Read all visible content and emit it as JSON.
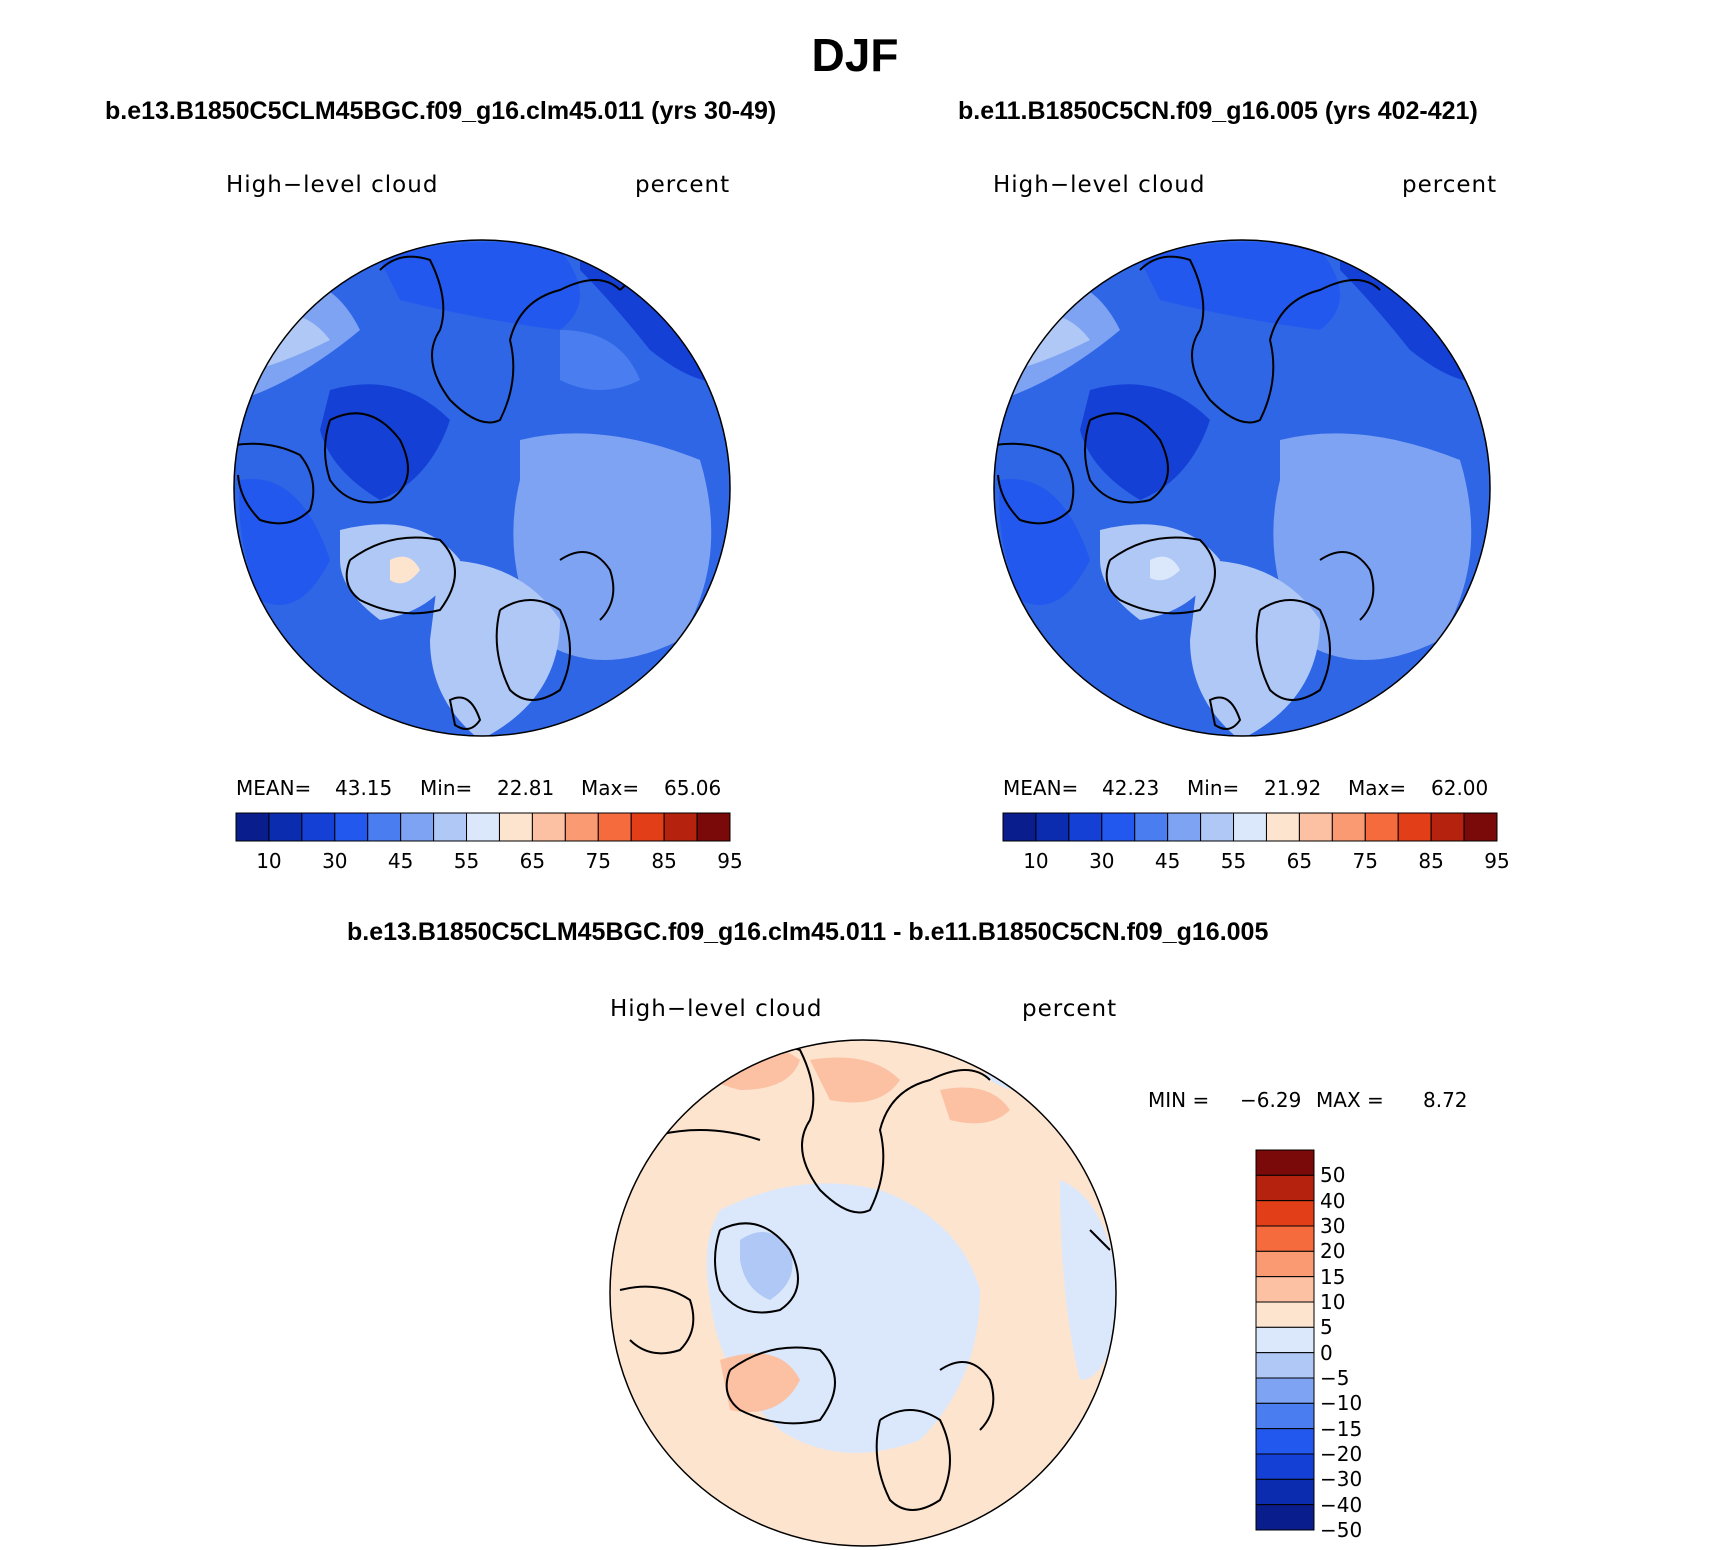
{
  "page_title": "DJF",
  "panels": [
    {
      "case": "b.e13.B1850C5CLM45BGC.f09_g16.clm45.011 (yrs 30-49)",
      "variable": "High−level cloud",
      "units": "percent",
      "stats": {
        "mean_label": "MEAN=",
        "mean": "43.15",
        "min_label": "Min=",
        "min": "22.81",
        "max_label": "Max=",
        "max": "65.06"
      }
    },
    {
      "case": "b.e11.B1850C5CN.f09_g16.005 (yrs 402-421)",
      "variable": "High−level cloud",
      "units": "percent",
      "stats": {
        "mean_label": "MEAN=",
        "mean": "42.23",
        "min_label": "Min=",
        "min": "21.92",
        "max_label": "Max=",
        "max": "62.00"
      }
    }
  ],
  "diff_panel": {
    "title": "b.e13.B1850C5CLM45BGC.f09_g16.clm45.011 - b.e11.B1850C5CN.f09_g16.005",
    "variable": "High−level cloud",
    "units": "percent",
    "minmax": {
      "min_label": "MIN =",
      "min": "−6.29",
      "max_label": "MAX =",
      "max": "8.72"
    }
  },
  "colorbar_main": {
    "colors": [
      "#0a1d8c",
      "#0c2cb0",
      "#1440d6",
      "#2358ee",
      "#4a7df0",
      "#7ea3f2",
      "#b0c8f6",
      "#dbe8fb",
      "#fde4cf",
      "#fcc0a2",
      "#fa9a73",
      "#f56b3d",
      "#e23e17",
      "#b5230e",
      "#7a0909"
    ],
    "tick_labels": [
      "10",
      "30",
      "45",
      "55",
      "65",
      "75",
      "85",
      "95"
    ]
  },
  "colorbar_diff": {
    "colors": [
      "#7a0909",
      "#b5230e",
      "#e23e17",
      "#f56b3d",
      "#fa9a73",
      "#fcc0a2",
      "#fde4cf",
      "#dbe8fb",
      "#b0c8f6",
      "#7ea3f2",
      "#4a7df0",
      "#2358ee",
      "#1440d6",
      "#0c2cb0",
      "#0a1d8c"
    ],
    "tick_labels": [
      "50",
      "40",
      "30",
      "20",
      "15",
      "10",
      "5",
      "0",
      "−5",
      "−10",
      "−15",
      "−20",
      "−30",
      "−40",
      "−50"
    ]
  }
}
